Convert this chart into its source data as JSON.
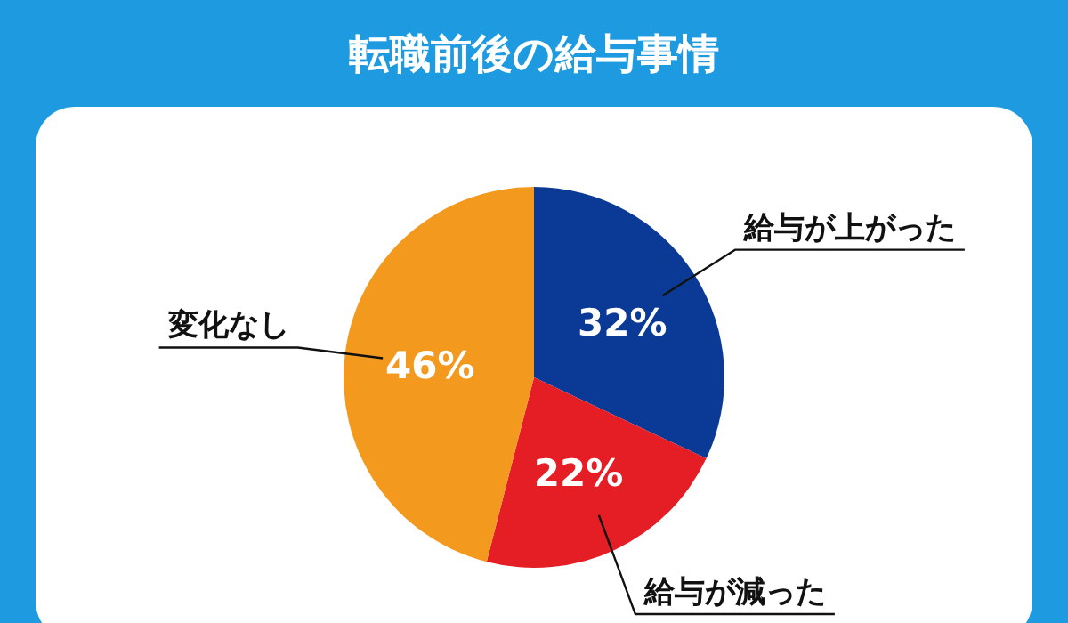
{
  "chart_data": {
    "type": "pie",
    "title": "転職前後の給与事情",
    "categories": [
      "給与が上がった",
      "給与が減った",
      "変化なし"
    ],
    "values": [
      32,
      22,
      46
    ],
    "colors": [
      "#0a3a96",
      "#e51d25",
      "#f39a1e"
    ],
    "value_labels": [
      "32%",
      "22%",
      "46%"
    ]
  }
}
